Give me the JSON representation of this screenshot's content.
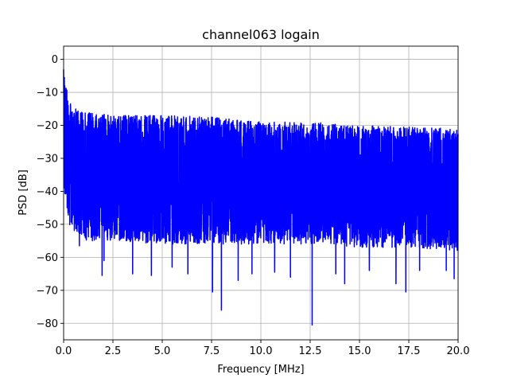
{
  "chart_data": {
    "type": "line",
    "title": "channel063 logain",
    "xlabel": "Frequency [MHz]",
    "ylabel": "PSD [dB]",
    "xlim": [
      0,
      20
    ],
    "ylim": [
      -85,
      4
    ],
    "grid": true,
    "series_color": "#0000ff",
    "xticks": [
      0,
      2.5,
      5,
      7.5,
      10,
      12.5,
      15,
      17.5,
      20
    ],
    "xtick_labels": [
      "0.0",
      "2.5",
      "5.0",
      "7.5",
      "10.0",
      "12.5",
      "15.0",
      "17.5",
      "20.0"
    ],
    "yticks": [
      0,
      -10,
      -20,
      -30,
      -40,
      -50,
      -60,
      -70,
      -80
    ],
    "ytick_labels": [
      "0",
      "−10",
      "−20",
      "−30",
      "−40",
      "−50",
      "−60",
      "−70",
      "−80"
    ],
    "series": [
      {
        "envelope": {
          "x": [
            0,
            0.05,
            0.15,
            0.3,
            0.5,
            1,
            2.5,
            5,
            7.5,
            10,
            12.5,
            15,
            17.5,
            20
          ],
          "upper": [
            0,
            -5,
            -9,
            -12,
            -14,
            -16,
            -17,
            -17,
            -17.5,
            -19,
            -19,
            -20,
            -20.5,
            -21
          ],
          "body_upper": [
            -10,
            -12,
            -18,
            -20,
            -21,
            -22,
            -22,
            -22,
            -23,
            -24,
            -24,
            -25,
            -25,
            -26
          ],
          "body_lower": [
            -30,
            -35,
            -42,
            -45,
            -47,
            -48,
            -50,
            -50,
            -50,
            -50,
            -50,
            -51,
            -52,
            -53
          ],
          "floor": [
            -35,
            -40,
            -47,
            -50,
            -52,
            -55,
            -55,
            -56,
            -56,
            -56,
            -56,
            -57,
            -57,
            -58
          ]
        },
        "notable_dips": [
          {
            "x": 0.8,
            "y": -56.5
          },
          {
            "x": 1.95,
            "y": -65.5
          },
          {
            "x": 2.05,
            "y": -61
          },
          {
            "x": 3.5,
            "y": -65
          },
          {
            "x": 4.45,
            "y": -65.5
          },
          {
            "x": 5.5,
            "y": -63
          },
          {
            "x": 6.3,
            "y": -65
          },
          {
            "x": 7.55,
            "y": -70.5
          },
          {
            "x": 8.0,
            "y": -76
          },
          {
            "x": 8.85,
            "y": -67
          },
          {
            "x": 9.55,
            "y": -65
          },
          {
            "x": 10.7,
            "y": -64.5
          },
          {
            "x": 11.5,
            "y": -66
          },
          {
            "x": 12.6,
            "y": -80.5
          },
          {
            "x": 13.8,
            "y": -65
          },
          {
            "x": 14.25,
            "y": -68
          },
          {
            "x": 15.5,
            "y": -64
          },
          {
            "x": 16.85,
            "y": -68
          },
          {
            "x": 17.35,
            "y": -70.5
          },
          {
            "x": 18.05,
            "y": -64
          },
          {
            "x": 19.4,
            "y": -64
          },
          {
            "x": 19.8,
            "y": -66.5
          }
        ]
      }
    ]
  }
}
